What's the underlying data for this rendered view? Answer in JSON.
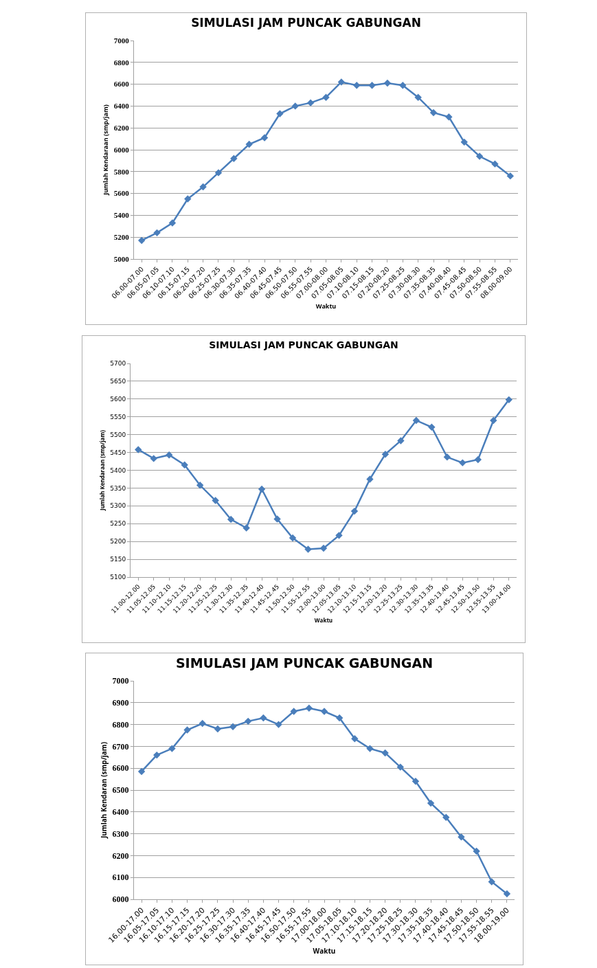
{
  "chart_data": [
    {
      "type": "line",
      "title": "SIMULASI JAM PUNCAK GABUNGAN",
      "xlabel": "Waktu",
      "ylabel": "Jumlah Kendaraan (smp/jam)",
      "categories": [
        "06.00-07.00",
        "06.05-07.05",
        "06.10-07.10",
        "06.15-07.15",
        "06.20-07.20",
        "06.25-07.25",
        "06.30-07.30",
        "06.35-07.35",
        "06.40-07.40",
        "06.45-07.45",
        "06.50-07.50",
        "06.55-07.55",
        "07.00-08.00",
        "07.05-08.05",
        "07.10-08.10",
        "07.15-08.15",
        "07.20-08.20",
        "07.25-08.25",
        "07.30-08.30",
        "07.35-08.35",
        "07.40-08.40",
        "07.45-08.45",
        "07.50-08.50",
        "07.55-08.55",
        "08.00-09.00"
      ],
      "series": [
        {
          "color": "#4a7ebb",
          "values": [
            5170,
            5240,
            5330,
            5550,
            5660,
            5790,
            5920,
            6050,
            6110,
            6330,
            6400,
            6430,
            6480,
            6620,
            6590,
            6590,
            6610,
            6590,
            6480,
            6340,
            6300,
            6070,
            5940,
            5870,
            5760
          ]
        }
      ],
      "ylim": [
        5000,
        7000
      ],
      "yticks": [
        5000,
        5200,
        5400,
        5600,
        5800,
        6000,
        6200,
        6400,
        6600,
        6800,
        7000
      ],
      "grid": "y",
      "marker": "diamond"
    },
    {
      "type": "line",
      "title": "SIMULASI JAM PUNCAK GABUNGAN",
      "xlabel": "Waktu",
      "ylabel": "Jumlah Kendaraan (smp/jam)",
      "categories": [
        "11.00-12.00",
        "11.05-12.05",
        "11.10-12.10",
        "11.15-12.15",
        "11.20-12.20",
        "11.25-12.25",
        "11.30-12.30",
        "11.35-12.35",
        "11.40-12.40",
        "11.45-12.45",
        "11.50-12.50",
        "11.55-12.55",
        "12.00-13.00",
        "12.05-13.05",
        "12.10-13.10",
        "12.15-13.15",
        "12.20-13.20",
        "12.25-13.25",
        "12.30-13.30",
        "12.35-13.35",
        "12.40-13.40",
        "12.45-13.45",
        "12.50-13.50",
        "12.55-13.55",
        "13.00-14.00"
      ],
      "series": [
        {
          "color": "#4a7ebb",
          "values": [
            5458,
            5433,
            5443,
            5415,
            5358,
            5315,
            5262,
            5238,
            5347,
            5263,
            5210,
            5178,
            5181,
            5217,
            5285,
            5375,
            5445,
            5483,
            5540,
            5521,
            5437,
            5421,
            5430,
            5540,
            5598
          ]
        }
      ],
      "ylim": [
        5100,
        5700
      ],
      "yticks": [
        5100,
        5150,
        5200,
        5250,
        5300,
        5350,
        5400,
        5450,
        5500,
        5550,
        5600,
        5650,
        5700
      ],
      "grid": "y",
      "marker": "diamond"
    },
    {
      "type": "line",
      "title": "SIMULASI JAM PUNCAK GABUNGAN",
      "xlabel": "Waktu",
      "ylabel": "Jumlah Kendaran (smp/jam)",
      "categories": [
        "16.00-17.00",
        "16.05-17.05",
        "16.10-17.10",
        "16.15-17.15",
        "16.20-17.20",
        "16.25-17.25",
        "16.30-17.30",
        "16.35-17.35",
        "16.40-17.40",
        "16.45-17.45",
        "16.50-17.50",
        "16.55-17.55",
        "17.00-18.00",
        "17.05-18.05",
        "17.10-18.10",
        "17.15-18.15",
        "17.20-18.20",
        "17.25-18.25",
        "17.30-18.30",
        "17.35-18.35",
        "17.40-18.40",
        "17.45-18.45",
        "17.50-18.50",
        "17.55-18.55",
        "18.00-19.00"
      ],
      "series": [
        {
          "color": "#4a7ebb",
          "values": [
            6585,
            6660,
            6690,
            6775,
            6805,
            6780,
            6790,
            6815,
            6830,
            6800,
            6860,
            6875,
            6860,
            6830,
            6735,
            6690,
            6670,
            6605,
            6540,
            6440,
            6375,
            6285,
            6220,
            6080,
            6025
          ]
        }
      ],
      "ylim": [
        6000,
        7000
      ],
      "yticks": [
        6000,
        6100,
        6200,
        6300,
        6400,
        6500,
        6600,
        6700,
        6800,
        6900,
        7000
      ],
      "grid": "y",
      "marker": "diamond"
    }
  ]
}
